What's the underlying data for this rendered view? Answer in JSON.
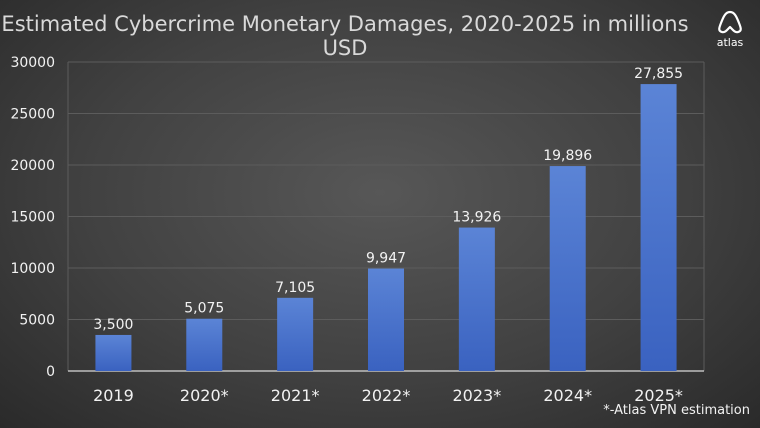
{
  "header": {
    "title": "Estimated Cybercrime Monetary Damages, 2020-2025 in millions USD",
    "logo_text": "atlas",
    "logo_icon": "atlas-logo-icon"
  },
  "footnote": "*-Atlas VPN estimation",
  "colors": {
    "bar_top": "#5b84d6",
    "bar_bottom": "#3a62c0",
    "axis_text": "#f2f2f2",
    "label_text": "#f2f2f2",
    "grid": "#5c5c5c",
    "axis_line": "#d9d9d9",
    "title_text": "#d9d9d9"
  },
  "chart_data": {
    "type": "bar",
    "title": "Estimated Cybercrime Monetary Damages, 2020-2025 in millions USD",
    "xlabel": "",
    "ylabel": "",
    "categories": [
      "2019",
      "2020*",
      "2021*",
      "2022*",
      "2023*",
      "2024*",
      "2025*"
    ],
    "values": [
      3500,
      5075,
      7105,
      9947,
      13926,
      19896,
      27855
    ],
    "value_labels": [
      "3,500",
      "5,075",
      "7,105",
      "9,947",
      "13,926",
      "19,896",
      "27,855"
    ],
    "ylim": [
      0,
      30000
    ],
    "yticks": [
      0,
      5000,
      10000,
      15000,
      20000,
      25000,
      30000
    ],
    "ytick_labels": [
      "0",
      "5000",
      "10000",
      "15000",
      "20000",
      "25000",
      "30000"
    ],
    "grid": true,
    "legend": "none"
  }
}
